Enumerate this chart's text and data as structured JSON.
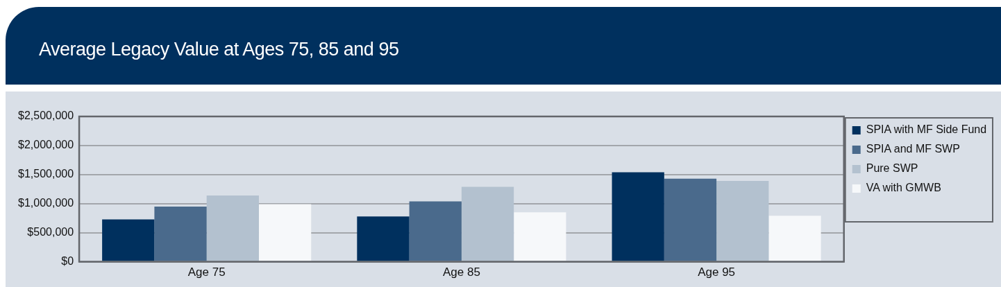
{
  "chart_data": {
    "type": "bar",
    "title": "Average Legacy Value at Ages 75, 85 and 95",
    "categories": [
      "Age 75",
      "Age 85",
      "Age 95"
    ],
    "series": [
      {
        "name": "SPIA with MF Side Fund",
        "color": "#00305e",
        "values": [
          730000,
          780000,
          1540000
        ]
      },
      {
        "name": "SPIA and MF SWP",
        "color": "#4a6a8c",
        "values": [
          950000,
          1040000,
          1430000
        ]
      },
      {
        "name": "Pure SWP",
        "color": "#b3c1cf",
        "values": [
          1140000,
          1290000,
          1390000
        ]
      },
      {
        "name": "VA with GMWB",
        "color": "#f6f8fa",
        "values": [
          990000,
          850000,
          790000
        ]
      }
    ],
    "ylim": [
      0,
      2500000
    ],
    "yticks": [
      {
        "value": 0,
        "label": "$0"
      },
      {
        "value": 500000,
        "label": "$500,000"
      },
      {
        "value": 1000000,
        "label": "$1,000,000"
      },
      {
        "value": 1500000,
        "label": "$1,500,000"
      },
      {
        "value": 2000000,
        "label": "$2,000,000"
      },
      {
        "value": 2500000,
        "label": "$2,500,000"
      }
    ],
    "grid": "y",
    "legend": "right"
  }
}
